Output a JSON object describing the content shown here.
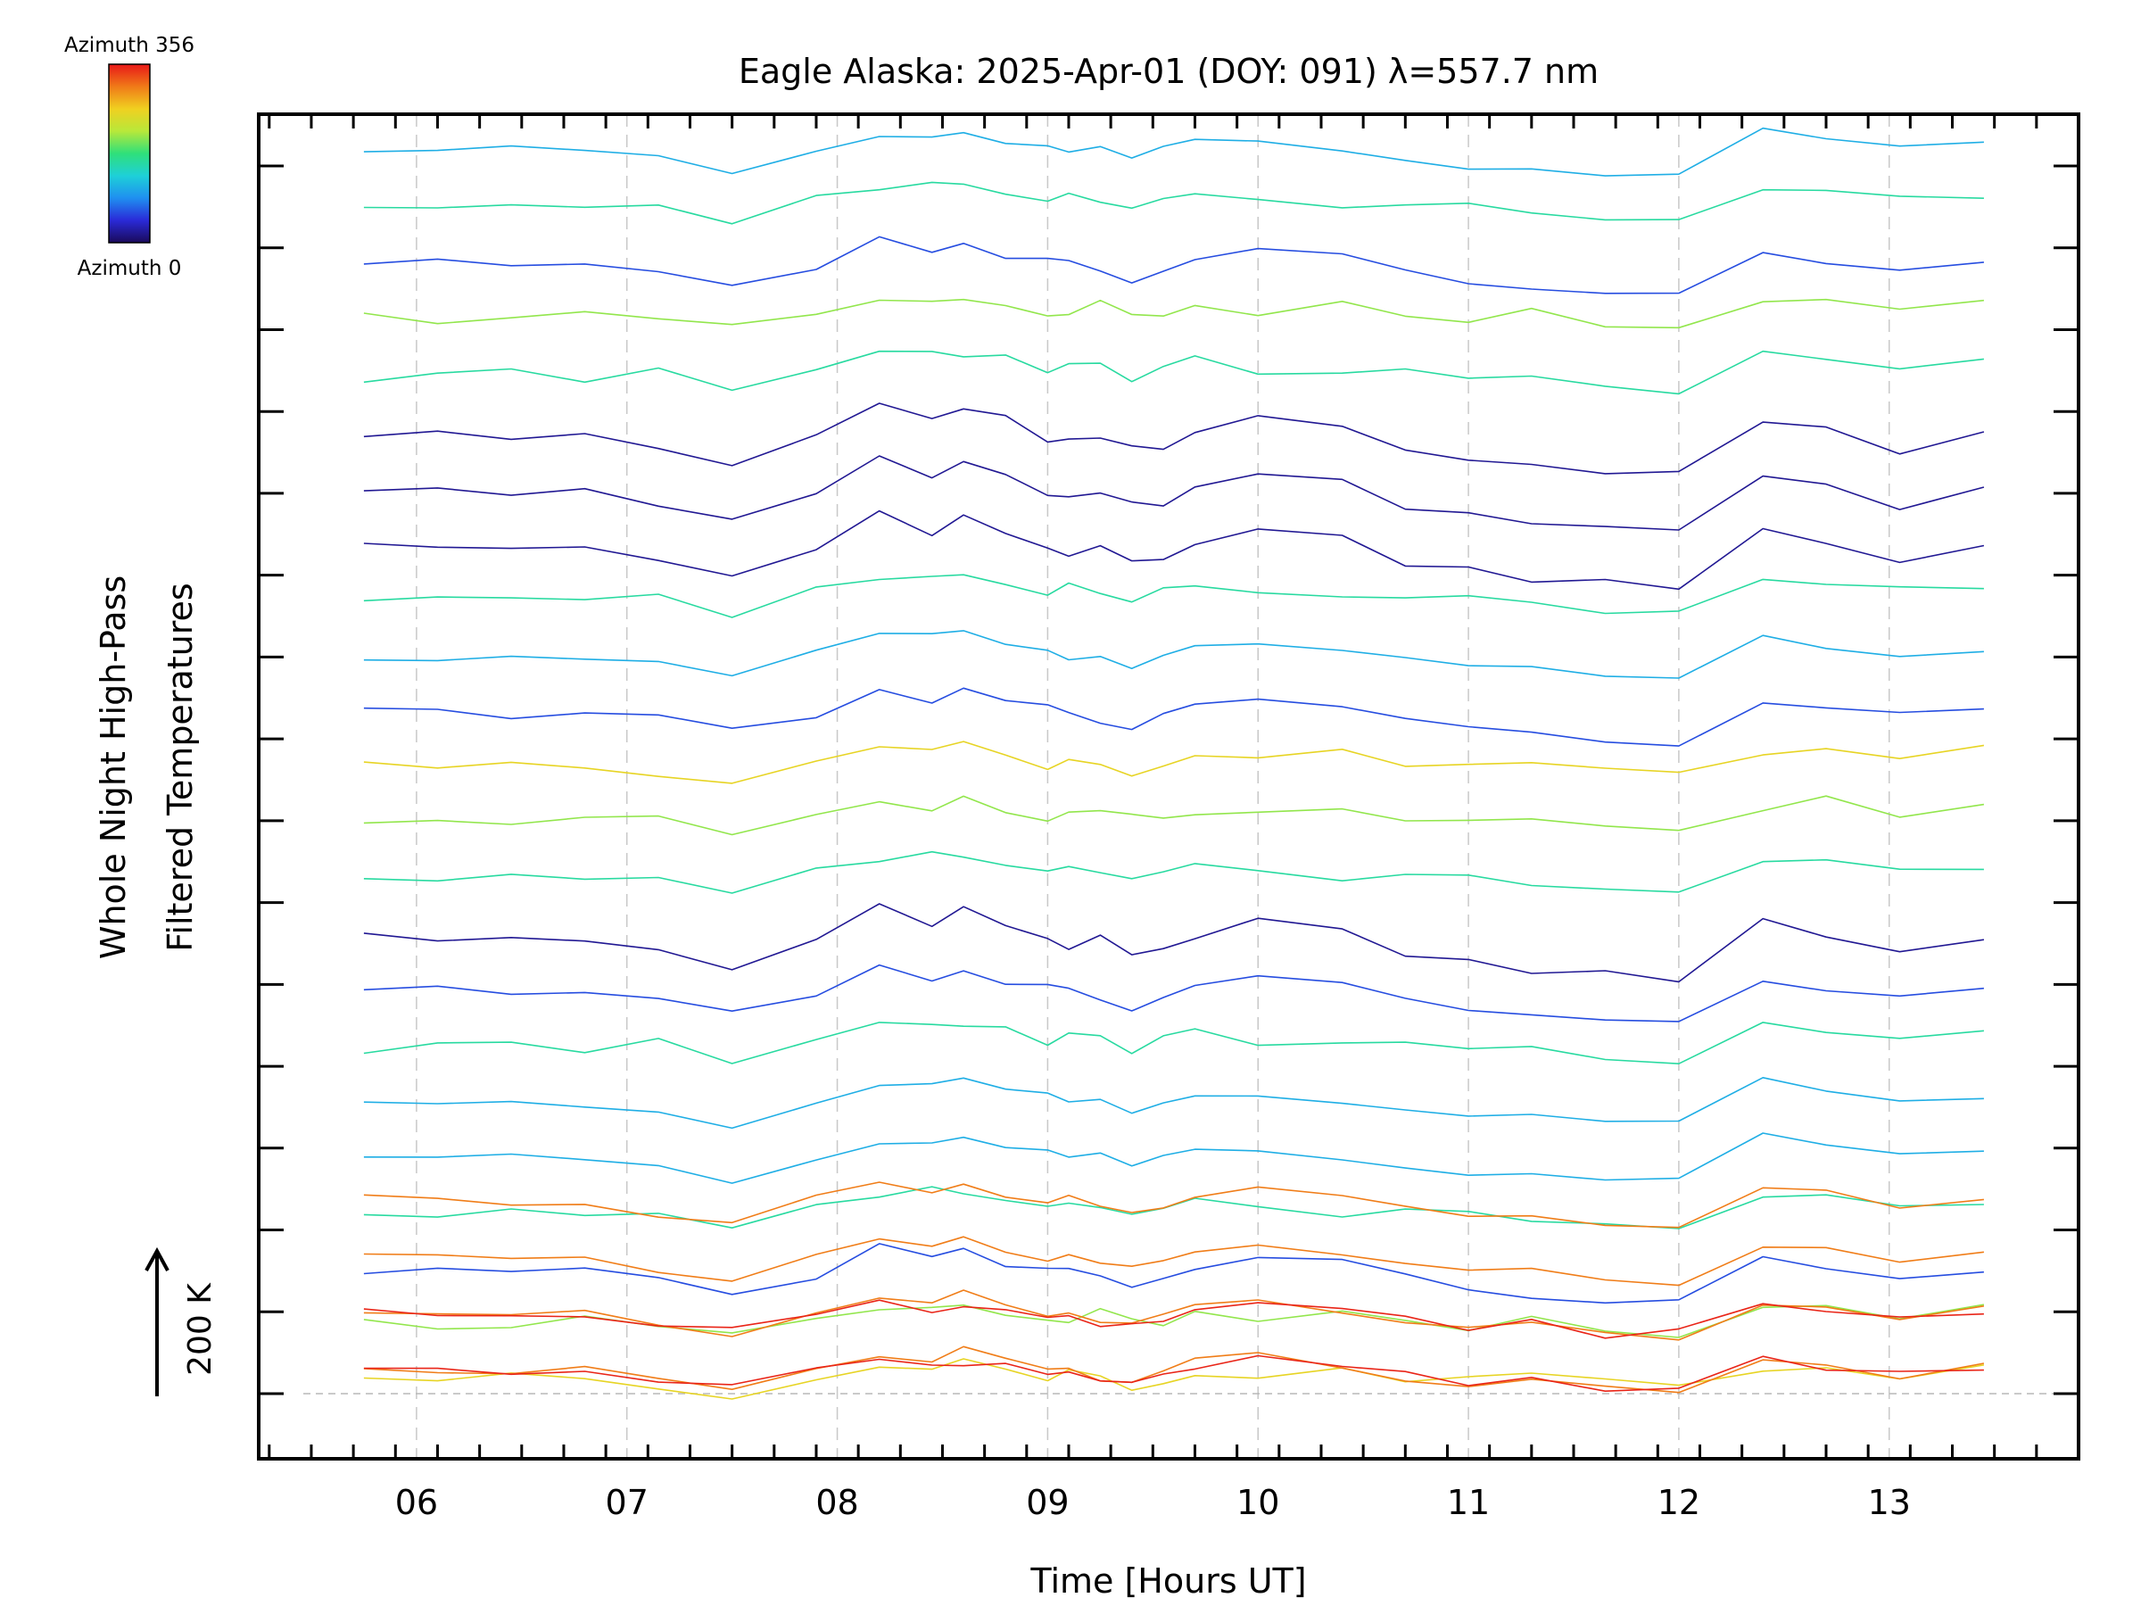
{
  "chart_data": {
    "type": "line",
    "title": "Eagle Alaska: 2025-Apr-01 (DOY: 091) λ=557.7 nm",
    "xlabel": "Time [Hours UT]",
    "ylabel_lines": [
      "Whole Night High-Pass",
      "Filtered Temperatures"
    ],
    "xlim": [
      5.25,
      13.9
    ],
    "x_ticks": [
      6,
      7,
      8,
      9,
      10,
      11,
      12,
      13
    ],
    "x_tick_labels": [
      "06",
      "07",
      "08",
      "09",
      "10",
      "11",
      "12",
      "13"
    ],
    "y_major_tick_count": 16,
    "grid": "vertical dashed at each hour; dashed baseline",
    "scale_bar": {
      "label": "200 K",
      "direction": "up"
    },
    "colorbar": {
      "top_label": "Azimuth  356",
      "bottom_label": "Azimuth  0",
      "colormap": [
        "#1a0a5a",
        "#2a2ad8",
        "#1f8ff0",
        "#1ed0d8",
        "#2fe07a",
        "#b8e83a",
        "#f0d020",
        "#f07a18",
        "#e81818"
      ]
    },
    "sample_times": [
      5.75,
      6.1,
      6.45,
      6.8,
      7.15,
      7.5,
      7.9,
      8.2,
      8.45,
      8.6,
      8.8,
      9.0,
      9.1,
      9.25,
      9.4,
      9.55,
      9.7,
      10.0,
      10.4,
      10.7,
      11.0,
      11.3,
      11.65,
      12.0,
      12.4,
      12.7,
      13.05,
      13.45
    ],
    "series_groups": [
      {
        "azimuth": 20,
        "offsets": [
          8,
          15,
          16,
          17
        ],
        "shape": [
          12,
          10,
          8,
          8,
          -5,
          -30,
          10,
          50,
          28,
          45,
          30,
          5,
          0,
          10,
          -8,
          -5,
          10,
          35,
          20,
          -10,
          -20,
          -30,
          -35,
          -40,
          30,
          15,
          -10,
          10
        ]
      },
      {
        "azimuth": 60,
        "offsets": [
          2,
          7,
          12,
          20,
          23
        ],
        "shape": [
          10,
          12,
          5,
          12,
          5,
          -15,
          0,
          40,
          25,
          40,
          20,
          15,
          10,
          0,
          -10,
          5,
          15,
          25,
          20,
          5,
          -10,
          -20,
          -30,
          -30,
          25,
          15,
          5,
          10
        ]
      },
      {
        "azimuth": 110,
        "offsets": [
          4,
          5,
          13,
          22
        ],
        "shape": [
          5,
          5,
          10,
          5,
          0,
          -20,
          10,
          30,
          30,
          35,
          20,
          15,
          5,
          10,
          -5,
          10,
          20,
          20,
          10,
          0,
          -10,
          -10,
          -20,
          -20,
          35,
          20,
          10,
          15
        ]
      },
      {
        "azimuth": 160,
        "offsets": [
          3,
          6,
          9,
          14,
          18,
          21
        ],
        "shape": [
          0,
          5,
          10,
          0,
          10,
          -15,
          15,
          30,
          35,
          30,
          25,
          10,
          20,
          15,
          0,
          15,
          25,
          10,
          5,
          10,
          5,
          0,
          -10,
          -15,
          30,
          25,
          15,
          20
        ]
      },
      {
        "azimuth": 210,
        "offsets": [
          1,
          10,
          19,
          24
        ],
        "shape": [
          5,
          0,
          0,
          10,
          5,
          -10,
          10,
          25,
          20,
          30,
          15,
          5,
          10,
          20,
          10,
          5,
          15,
          10,
          20,
          5,
          0,
          10,
          -5,
          -10,
          20,
          30,
          10,
          25
        ]
      },
      {
        "azimuth": 260,
        "offsets": [
          0,
          11
        ],
        "shape": [
          0,
          -5,
          5,
          0,
          -10,
          -20,
          5,
          20,
          15,
          25,
          10,
          -5,
          10,
          5,
          -10,
          0,
          10,
          5,
          15,
          -5,
          0,
          5,
          0,
          -5,
          15,
          20,
          5,
          20
        ]
      },
      {
        "azimuth": 310,
        "offsets": [
          0,
          1,
          2,
          3
        ],
        "shape": [
          15,
          10,
          5,
          10,
          -5,
          -15,
          15,
          30,
          20,
          35,
          20,
          10,
          15,
          0,
          -5,
          5,
          20,
          30,
          15,
          0,
          -10,
          -5,
          -15,
          -20,
          25,
          20,
          0,
          15
        ]
      },
      {
        "azimuth": 350,
        "offsets": [
          0,
          1
        ],
        "shape": [
          10,
          5,
          5,
          0,
          -5,
          -15,
          10,
          20,
          10,
          15,
          10,
          5,
          0,
          -5,
          -10,
          0,
          10,
          20,
          15,
          0,
          -10,
          -5,
          -20,
          -15,
          20,
          10,
          0,
          10
        ]
      }
    ]
  }
}
